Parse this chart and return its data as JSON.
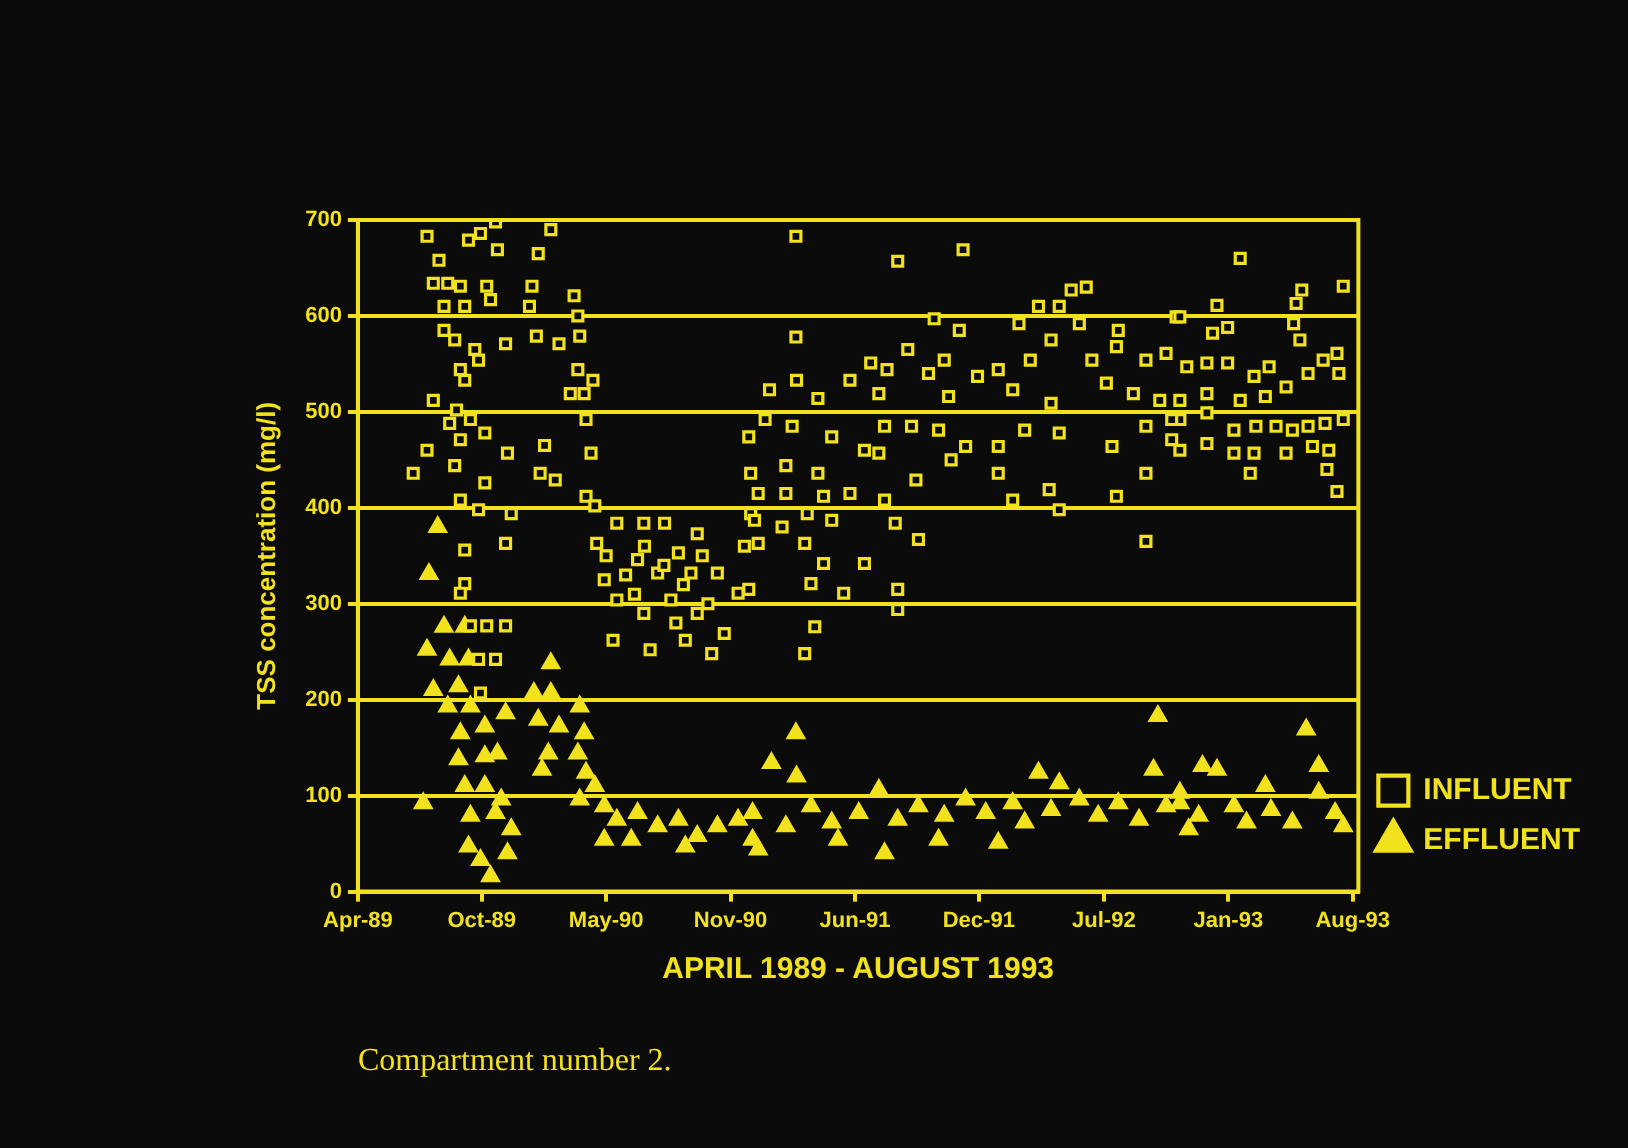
{
  "chart_data": {
    "type": "scatter",
    "xlabel": "APRIL 1989 - AUGUST 1993",
    "ylabel": "TSS concentration (mg/l)",
    "annotations": [
      "Compartment number 2."
    ],
    "xlim": [
      "1989-04-01",
      "1993-08-10"
    ],
    "xticks": [
      {
        "value": "1989-04-01",
        "label": "Apr-89"
      },
      {
        "value": "1989-10-15",
        "label": "Oct-89"
      },
      {
        "value": "1990-05-01",
        "label": "May-90"
      },
      {
        "value": "1990-11-15",
        "label": "Nov-90"
      },
      {
        "value": "1991-06-01",
        "label": "Jun-91"
      },
      {
        "value": "1991-12-15",
        "label": "Dec-91"
      },
      {
        "value": "1992-07-01",
        "label": "Jul-92"
      },
      {
        "value": "1993-01-15",
        "label": "Jan-93"
      },
      {
        "value": "1993-08-01",
        "label": "Aug-93"
      }
    ],
    "ylim": [
      0,
      700
    ],
    "yticks": [
      0,
      100,
      200,
      300,
      400,
      500,
      600,
      700
    ],
    "grid": "y",
    "legend": "bottom right",
    "series": [
      {
        "name": "INFLUENT",
        "color": "#f2e21e",
        "marker": "square",
        "x": [
          "1989-07-20",
          "1989-08-08",
          "1989-07-30",
          "1989-08-22",
          "1989-09-11",
          "1989-08-16",
          "1989-09-18",
          "1989-08-16",
          "1989-09-02",
          "1989-10-04",
          "1989-10-10",
          "1989-09-11",
          "1989-09-18",
          "1989-09-24",
          "1989-10-13",
          "1989-11-06",
          "1989-11-09",
          "1989-10-23",
          "1989-10-29",
          "1989-11-22",
          "1990-01-13",
          "1990-02-02",
          "1990-01-03",
          "1989-12-30",
          "1990-01-10",
          "1990-02-15",
          "1990-03-11",
          "1990-03-17",
          "1990-03-20",
          "1990-03-17",
          "1990-04-10",
          "1990-03-05",
          "1990-03-27",
          "1989-07-30",
          "1989-09-05",
          "1989-08-25",
          "1989-09-27",
          "1989-10-20",
          "1989-09-11",
          "1989-07-20",
          "1989-06-28",
          "1989-09-02",
          "1989-11-25",
          "1990-01-23",
          "1990-01-16",
          "1990-02-09",
          "1990-03-30",
          "1990-04-07",
          "1989-10-20",
          "1989-09-11",
          "1989-10-10",
          "1989-12-01",
          "1989-11-22",
          "1989-09-18",
          "1989-09-18",
          "1989-09-11",
          "1990-03-30",
          "1990-04-13",
          "1989-09-27",
          "1989-10-23",
          "1989-11-22",
          "1989-10-10",
          "1989-11-06",
          "1989-10-13",
          "1990-04-16",
          "1990-05-18",
          "1990-06-30",
          "1990-08-02",
          "1990-04-28",
          "1990-05-18",
          "1990-05-12",
          "1990-07-10",
          "1990-09-04",
          "1990-10-16",
          "1990-11-05",
          "1990-06-20",
          "1990-07-22",
          "1990-08-24",
          "1990-09-23",
          "1990-09-13",
          "1990-10-25",
          "1990-08-12",
          "1990-09-23",
          "1990-06-30",
          "1990-11-27",
          "1990-12-07",
          "1990-12-17",
          "1990-06-01",
          "1990-07-01",
          "1990-08-01",
          "1990-09-01",
          "1990-10-01",
          "1990-05-01",
          "1990-06-15",
          "1990-08-20",
          "1990-10-10",
          "1991-02-27",
          "1991-08-08",
          "1991-11-20",
          "1991-02-27",
          "1991-10-05",
          "1991-11-14",
          "1991-08-24",
          "1992-05-10",
          "1992-06-03",
          "1992-04-21",
          "1992-03-19",
          "1992-02-17",
          "1992-05-23",
          "1992-07-24",
          "1992-10-24",
          "1992-10-08",
          "1992-09-06",
          "1992-07-21",
          "1992-06-12",
          "1992-04-08",
          "1992-03-06",
          "1992-01-15",
          "1991-10-21",
          "1991-09-26",
          "1991-07-22",
          "1991-06-26",
          "1991-05-24",
          "1991-02-28",
          "1991-01-16",
          "1991-04-03",
          "1991-07-09",
          "1991-10-28",
          "1991-12-13",
          "1992-02-07",
          "1992-04-08",
          "1992-07-05",
          "1992-08-17",
          "1992-09-28",
          "1992-10-30",
          "1991-01-09",
          "1991-02-21",
          "1990-12-14",
          "1991-04-25",
          "1991-07-18",
          "1991-08-30",
          "1991-06-16",
          "1991-10-12",
          "1991-11-24",
          "1992-01-15",
          "1992-02-26",
          "1992-04-21",
          "1992-07-14",
          "1992-09-06",
          "1992-10-17",
          "1990-12-17",
          "1991-02-11",
          "1991-04-03",
          "1991-07-09",
          "1991-09-06",
          "1991-11-01",
          "1992-01-15",
          "1992-02-07",
          "1992-04-05",
          "1992-04-21",
          "1992-07-21",
          "1992-09-06",
          "1990-12-29",
          "1991-02-11",
          "1991-04-12",
          "1991-05-24",
          "1991-07-18",
          "1990-12-23",
          "1991-02-05",
          "1991-03-17",
          "1991-04-25",
          "1991-08-04",
          "1990-12-29",
          "1991-03-13",
          "1991-04-12",
          "1991-06-16",
          "1991-03-23",
          "1991-05-14",
          "1991-08-08",
          "1991-08-08",
          "1991-09-10",
          "1992-09-06",
          "1990-12-14",
          "1991-03-29",
          "1991-03-13",
          "1993-02-03",
          "1992-12-28",
          "1993-05-03",
          "1993-05-12",
          "1993-07-17",
          "1992-10-30",
          "1992-12-21",
          "1993-01-14",
          "1993-04-29",
          "1993-05-09",
          "1993-07-07",
          "1993-07-10",
          "1992-11-10",
          "1992-12-12",
          "1993-01-14",
          "1993-02-25",
          "1993-03-21",
          "1993-04-17",
          "1993-05-22",
          "1993-06-15",
          "1992-10-30",
          "1992-12-12",
          "1993-02-03",
          "1993-03-15",
          "1992-10-17",
          "1992-12-12",
          "1993-01-24",
          "1993-02-28",
          "1993-04-01",
          "1993-04-27",
          "1993-05-22",
          "1993-06-18",
          "1993-07-17",
          "1992-10-30",
          "1992-12-12",
          "1993-01-24",
          "1993-02-25",
          "1993-04-17",
          "1993-05-29",
          "1993-06-24",
          "1993-02-19",
          "1993-06-21",
          "1993-07-07"
        ],
        "values": [
          683,
          658,
          634,
          634,
          631,
          610,
          610,
          585,
          575,
          565,
          554,
          544,
          533,
          679,
          686,
          698,
          669,
          631,
          617,
          571,
          665,
          690,
          631,
          610,
          579,
          571,
          621,
          600,
          579,
          544,
          533,
          519,
          519,
          512,
          502,
          488,
          492,
          478,
          471,
          460,
          436,
          444,
          457,
          465,
          436,
          429,
          492,
          457,
          426,
          408,
          398,
          394,
          363,
          356,
          321,
          311,
          412,
          402,
          277,
          277,
          277,
          242,
          242,
          207,
          363,
          384,
          384,
          384,
          325,
          304,
          262,
          252,
          262,
          248,
          269,
          346,
          332,
          353,
          373,
          332,
          332,
          304,
          290,
          290,
          311,
          360,
          394,
          330,
          360,
          340,
          320,
          350,
          350,
          310,
          280,
          300,
          683,
          657,
          669,
          578,
          597,
          585,
          565,
          627,
          630,
          610,
          610,
          592,
          592,
          585,
          599,
          561,
          554,
          568,
          554,
          575,
          554,
          544,
          554,
          540,
          544,
          551,
          533,
          533,
          523,
          514,
          519,
          516,
          537,
          523,
          509,
          530,
          519,
          512,
          492,
          492,
          485,
          474,
          474,
          485,
          485,
          460,
          481,
          464,
          464,
          481,
          478,
          464,
          485,
          471,
          436,
          444,
          436,
          457,
          429,
          450,
          436,
          408,
          419,
          398,
          412,
          436,
          415,
          415,
          412,
          415,
          408,
          387,
          380,
          394,
          387,
          384,
          363,
          363,
          342,
          342,
          321,
          311,
          315,
          294,
          367,
          365,
          315,
          276,
          248,
          660,
          611,
          613,
          627,
          631,
          599,
          582,
          588,
          592,
          575,
          561,
          540,
          547,
          551,
          551,
          537,
          547,
          526,
          540,
          554,
          512,
          519,
          512,
          516,
          492,
          499,
          481,
          485,
          485,
          481,
          485,
          488,
          492,
          460,
          467,
          457,
          457,
          457,
          464,
          460,
          436,
          440,
          417
        ]
      },
      {
        "name": "EFFLUENT",
        "color": "#f2e21e",
        "marker": "triangle",
        "x": [
          "1989-08-06",
          "1989-07-23",
          "1989-07-14",
          "1989-08-16",
          "1989-09-18",
          "1989-07-20",
          "1989-08-25",
          "1989-09-24",
          "1989-07-30",
          "1989-09-08",
          "1989-08-22",
          "1989-09-27",
          "1989-09-11",
          "1989-10-20",
          "1989-11-22",
          "1989-09-08",
          "1989-10-20",
          "1989-11-09",
          "1989-09-18",
          "1989-10-20",
          "1989-11-15",
          "1989-09-27",
          "1989-11-06",
          "1989-12-01",
          "1989-09-24",
          "1989-10-13",
          "1989-11-25",
          "1989-10-29",
          "1990-02-02",
          "1990-01-06",
          "1990-02-02",
          "1990-01-13",
          "1990-02-15",
          "1990-01-19",
          "1990-01-29",
          "1990-03-20",
          "1990-03-27",
          "1990-03-17",
          "1990-03-30",
          "1990-04-13",
          "1990-03-20",
          "1990-04-28",
          "1990-05-18",
          "1990-06-20",
          "1990-07-22",
          "1990-08-24",
          "1990-09-23",
          "1990-10-25",
          "1990-11-27",
          "1990-12-20",
          "1990-06-10",
          "1990-04-28",
          "1990-09-04",
          "1991-02-27",
          "1991-01-19",
          "1991-02-28",
          "1992-09-25",
          "1992-09-18",
          "1992-03-19",
          "1992-04-21",
          "1991-07-09",
          "1992-01-15",
          "1991-07-18",
          "1990-12-29",
          "1991-05-05",
          "1991-10-12",
          "1990-12-20",
          "1991-02-11",
          "1991-03-23",
          "1991-04-25",
          "1991-06-07",
          "1991-08-08",
          "1991-09-10",
          "1991-10-21",
          "1991-11-24",
          "1991-12-26",
          "1992-02-07",
          "1992-02-26",
          "1992-04-08",
          "1992-05-23",
          "1992-06-22",
          "1992-07-24",
          "1992-08-26",
          "1992-10-08",
          "1992-10-30",
          "1993-05-19",
          "1993-06-08",
          "1992-12-05",
          "1992-12-28",
          "1993-03-15",
          "1992-10-30",
          "1992-11-29",
          "1993-01-24",
          "1993-02-13",
          "1993-03-24",
          "1993-04-27",
          "1993-06-08",
          "1993-07-04",
          "1993-07-17",
          "1992-11-13"
        ],
        "values": [
          380,
          331,
          92,
          276,
          276,
          252,
          242,
          242,
          210,
          214,
          193,
          193,
          165,
          172,
          186,
          138,
          141,
          144,
          110,
          110,
          96,
          79,
          82,
          65,
          47,
          33,
          40,
          16,
          238,
          207,
          207,
          179,
          172,
          127,
          144,
          193,
          165,
          144,
          124,
          110,
          96,
          89,
          75,
          82,
          68,
          75,
          58,
          68,
          75,
          54,
          54,
          54,
          47,
          165,
          134,
          120,
          183,
          127,
          124,
          113,
          106,
          51,
          40,
          44,
          54,
          54,
          82,
          68,
          89,
          72,
          82,
          75,
          89,
          79,
          96,
          82,
          92,
          72,
          85,
          96,
          79,
          92,
          75,
          89,
          103,
          169,
          131,
          131,
          127,
          110,
          92,
          79,
          89,
          72,
          85,
          72,
          103,
          82,
          68,
          65
        ]
      }
    ]
  }
}
